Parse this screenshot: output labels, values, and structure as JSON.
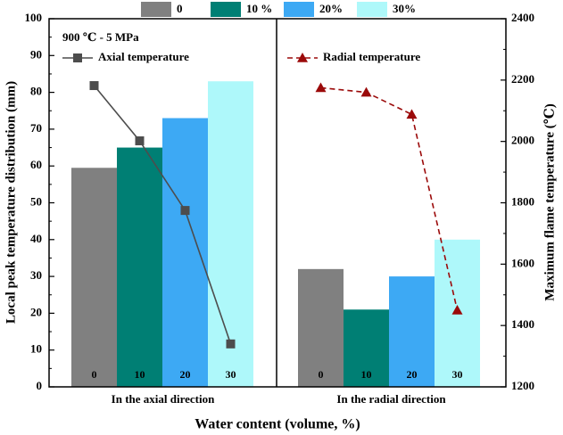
{
  "chart_data": {
    "type": "bar+line",
    "legend": [
      {
        "label": "0",
        "color": "#808080"
      },
      {
        "label": "10 %",
        "color": "#007F74"
      },
      {
        "label": "20%",
        "color": "#3DA9F4"
      },
      {
        "label": "30%",
        "color": "#AEF8FA"
      }
    ],
    "annotation": "900 ℃ - 5 MPa",
    "xlabel": "Water content (volume, %)",
    "ylabel_left": "Local peak temperature distribution (mm)",
    "ylabel_right": "Maximum flame temperature (℃)",
    "ylim_left": [
      0,
      100
    ],
    "ylim_right": [
      1200,
      2400
    ],
    "yticks_left": [
      "0",
      "10",
      "20",
      "30",
      "40",
      "50",
      "60",
      "70",
      "80",
      "90",
      "100"
    ],
    "yticks_right": [
      "1200",
      "1400",
      "1600",
      "1800",
      "2000",
      "2200",
      "2400"
    ],
    "panels": [
      {
        "name": "In the axial direction",
        "categories": [
          "0",
          "10",
          "20",
          "30"
        ],
        "bar_values": [
          59.5,
          65,
          73,
          83
        ],
        "line": {
          "name": "Axial temperature",
          "values": [
            2182,
            2002,
            1775,
            1340
          ],
          "color": "#4D4D4D",
          "style": "solid",
          "marker": "square"
        }
      },
      {
        "name": "In the radial direction",
        "categories": [
          "0",
          "10",
          "20",
          "30"
        ],
        "bar_values": [
          32,
          21,
          30,
          40
        ],
        "line": {
          "name": "Radial temperature",
          "values": [
            2175,
            2160,
            2088,
            1450
          ],
          "color": "#9B0A0A",
          "style": "dashed",
          "marker": "triangle"
        }
      }
    ]
  }
}
